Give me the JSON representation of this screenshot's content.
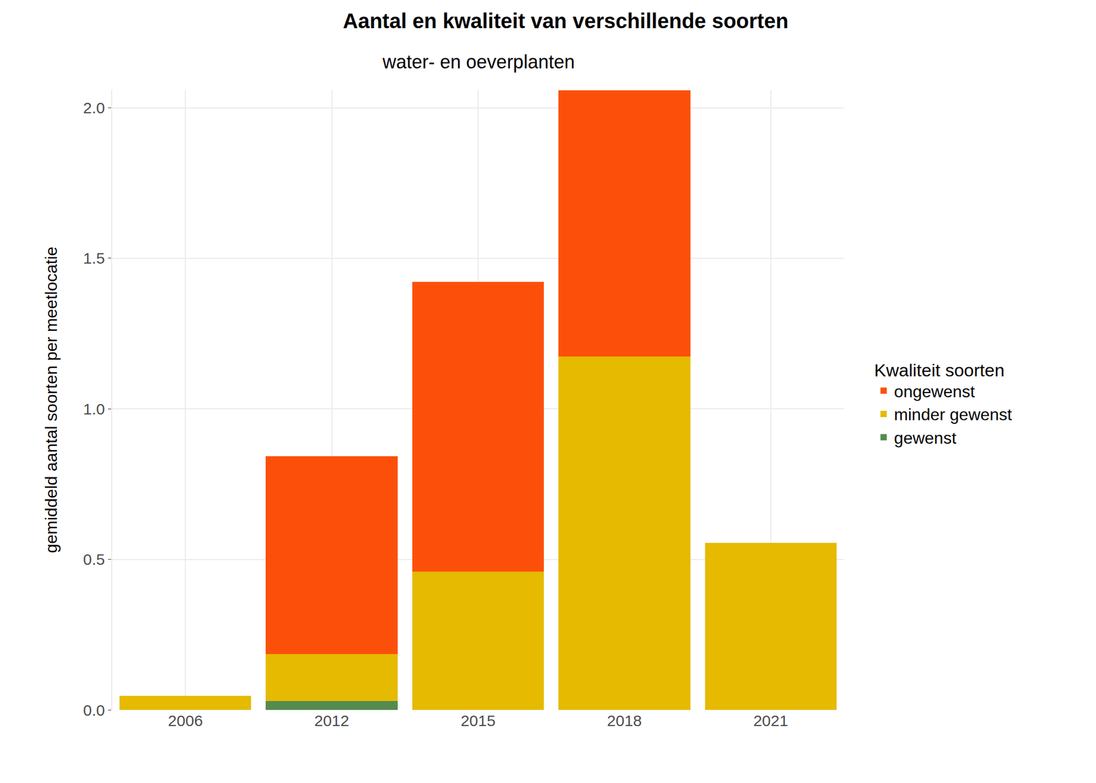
{
  "chart_data": {
    "type": "bar",
    "title": "Aantal en kwaliteit van verschillende soorten",
    "subtitle": "water- en oeverplanten",
    "y_label": "gemiddeld aantal soorten per meetlocatie",
    "categories": [
      "2006",
      "2012",
      "2015",
      "2018",
      "2021"
    ],
    "series": [
      {
        "name": "gewenst",
        "color": "#548b4f",
        "values": [
          0,
          0.03,
          0,
          0,
          0
        ]
      },
      {
        "name": "minder gewenst",
        "color": "#e5ba00",
        "values": [
          0.046,
          0.156,
          0.459,
          1.174,
          0.555
        ]
      },
      {
        "name": "ongewenst",
        "color": "#fc500a",
        "values": [
          0,
          0.656,
          0.963,
          0.884,
          0
        ]
      }
    ],
    "stacked": true,
    "ylim": [
      0,
      2.06
    ],
    "yticks": [
      {
        "value": 0,
        "label": "0.0"
      },
      0.5,
      {
        "value": 1,
        "label": "1.0"
      },
      1.5,
      {
        "value": 2,
        "label": "2.0"
      }
    ],
    "grid": true,
    "legend": "right",
    "legend_title": "Kwaliteit soorten"
  }
}
